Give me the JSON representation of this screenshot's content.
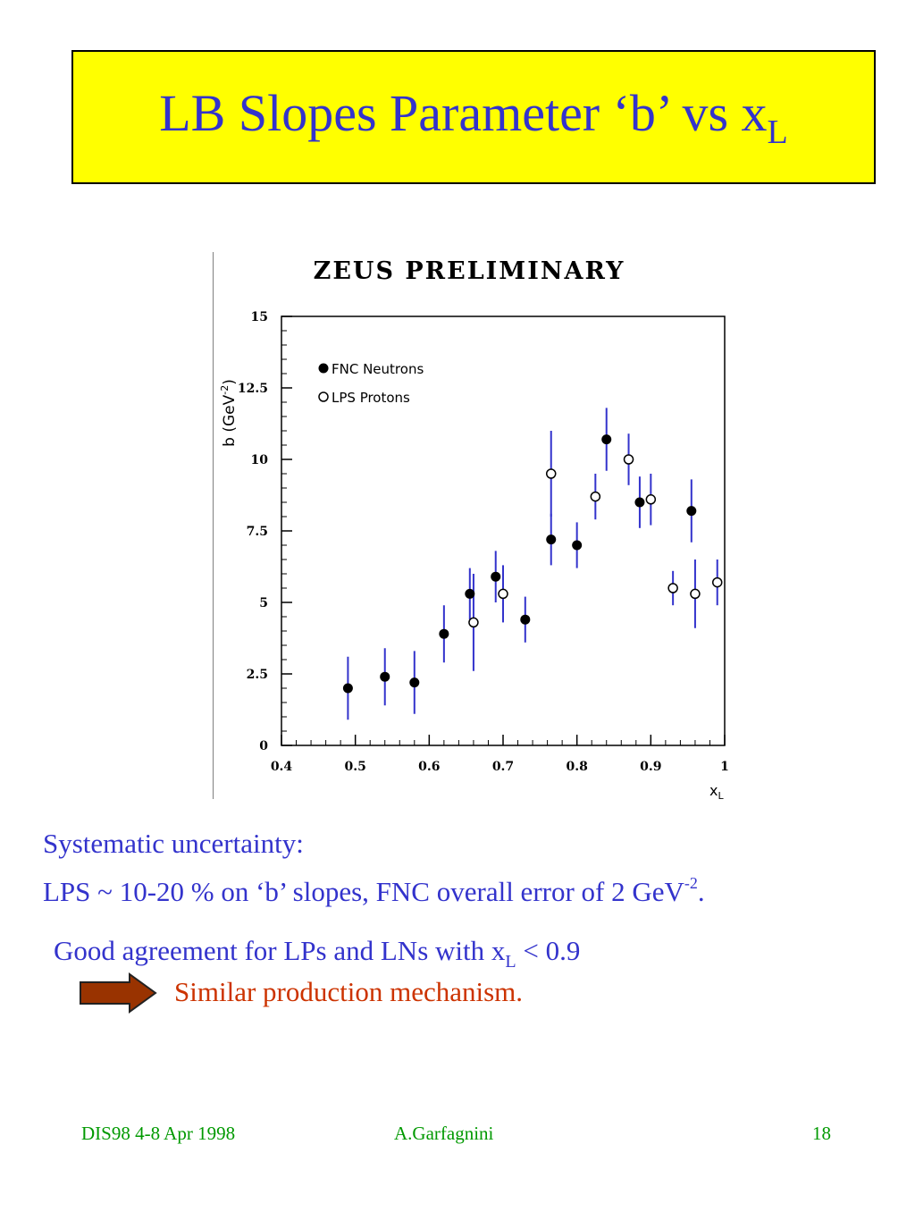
{
  "slide": {
    "title_main": "LB Slopes Parameter ‘b’ vs x",
    "title_sub": "L",
    "systematic_line1": "Systematic uncertainty:",
    "systematic_line2": "LPS ~ 10-20 % on ‘b’ slopes, FNC overall error of 2 GeV",
    "systematic_sup": "-2",
    "systematic_end": ".",
    "agreement_text": "Good agreement for LPs and LNs with x",
    "agreement_sub": "L",
    "agreement_end": " < 0.9",
    "mechanism_text": "Similar production mechanism.",
    "footer_left": "DIS98 4-8 Apr 1998",
    "footer_center": "A.Garfagnini",
    "footer_right": "18"
  },
  "colors": {
    "title_bg": "#ffff00",
    "title_text": "#3333cc",
    "body_text": "#3333cc",
    "highlight_text": "#cc3300",
    "arrow_fill": "#993300",
    "footer_text": "#009900",
    "error_bar": "#3333cc"
  },
  "chart_data": {
    "type": "scatter",
    "title": "ZEUS PRELIMINARY",
    "xlabel": "x",
    "xlabel_sub": "L",
    "ylabel": "b (GeV",
    "ylabel_sup": "-2",
    "ylabel_end": ")",
    "xlim": [
      0.4,
      1.0
    ],
    "ylim": [
      0,
      15
    ],
    "xticks": [
      {
        "value": 0.4,
        "label": "0.4"
      },
      {
        "value": 0.5,
        "label": "0.5"
      },
      {
        "value": 0.6,
        "label": "0.6"
      },
      {
        "value": 0.7,
        "label": "0.7"
      },
      {
        "value": 0.8,
        "label": "0.8"
      },
      {
        "value": 0.9,
        "label": "0.9"
      },
      {
        "value": 1.0,
        "label": "1"
      }
    ],
    "yticks": [
      {
        "value": 0,
        "label": "0"
      },
      {
        "value": 2.5,
        "label": "2.5"
      },
      {
        "value": 5,
        "label": "5"
      },
      {
        "value": 7.5,
        "label": "7.5"
      },
      {
        "value": 10,
        "label": "10"
      },
      {
        "value": 12.5,
        "label": "12.5"
      },
      {
        "value": 15,
        "label": "15"
      }
    ],
    "legend_position": "top-left",
    "grid": false,
    "series": [
      {
        "name": "FNC Neutrons",
        "marker": "filled-circle",
        "points": [
          {
            "x": 0.49,
            "y": 2.0,
            "lo": 0.9,
            "hi": 3.1
          },
          {
            "x": 0.54,
            "y": 2.4,
            "lo": 1.4,
            "hi": 3.4
          },
          {
            "x": 0.58,
            "y": 2.2,
            "lo": 1.1,
            "hi": 3.3
          },
          {
            "x": 0.62,
            "y": 3.9,
            "lo": 2.9,
            "hi": 4.9
          },
          {
            "x": 0.655,
            "y": 5.3,
            "lo": 4.4,
            "hi": 6.2
          },
          {
            "x": 0.69,
            "y": 5.9,
            "lo": 5.0,
            "hi": 6.8
          },
          {
            "x": 0.73,
            "y": 4.4,
            "lo": 3.6,
            "hi": 5.2
          },
          {
            "x": 0.765,
            "y": 7.2,
            "lo": 6.3,
            "hi": 8.1
          },
          {
            "x": 0.8,
            "y": 7.0,
            "lo": 6.2,
            "hi": 7.8
          },
          {
            "x": 0.84,
            "y": 10.7,
            "lo": 9.6,
            "hi": 11.8
          },
          {
            "x": 0.885,
            "y": 8.5,
            "lo": 7.6,
            "hi": 9.4
          },
          {
            "x": 0.955,
            "y": 8.2,
            "lo": 7.1,
            "hi": 9.3
          }
        ]
      },
      {
        "name": "LPS Protons",
        "marker": "open-circle",
        "points": [
          {
            "x": 0.66,
            "y": 4.3,
            "lo": 2.6,
            "hi": 6.0
          },
          {
            "x": 0.7,
            "y": 5.3,
            "lo": 4.3,
            "hi": 6.3
          },
          {
            "x": 0.765,
            "y": 9.5,
            "lo": 8.0,
            "hi": 11.0
          },
          {
            "x": 0.825,
            "y": 8.7,
            "lo": 7.9,
            "hi": 9.5
          },
          {
            "x": 0.87,
            "y": 10.0,
            "lo": 9.1,
            "hi": 10.9
          },
          {
            "x": 0.9,
            "y": 8.6,
            "lo": 7.7,
            "hi": 9.5
          },
          {
            "x": 0.93,
            "y": 5.5,
            "lo": 4.9,
            "hi": 6.1
          },
          {
            "x": 0.96,
            "y": 5.3,
            "lo": 4.1,
            "hi": 6.5
          },
          {
            "x": 0.99,
            "y": 5.7,
            "lo": 4.9,
            "hi": 6.5
          }
        ]
      }
    ]
  }
}
